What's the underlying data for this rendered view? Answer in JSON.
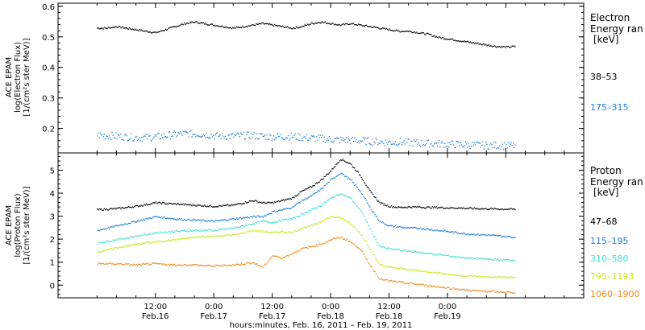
{
  "chart_data": [
    {
      "type": "scatter",
      "panel": "electron",
      "ylabel_lines": [
        "ACE EPAM",
        "log(Electron Flux)",
        "[1/(cm²s ster MeV)]"
      ],
      "ylim": [
        0.12,
        0.61
      ],
      "yticks": [
        0.2,
        0.3,
        0.4,
        0.5,
        0.6
      ],
      "ytick_labels": [
        "0.2",
        "0.3",
        "0.4",
        "0.5",
        "0.6"
      ],
      "legend_title_lines": [
        "Electron",
        "Energy ran",
        "[keV]"
      ],
      "series": [
        {
          "name": "38–53",
          "color": "#000000",
          "x": [
            0,
            2,
            4,
            6,
            8,
            10,
            12,
            14,
            16,
            18,
            20,
            22,
            24,
            26,
            28,
            30,
            32,
            34,
            36,
            38,
            40,
            42,
            44,
            46,
            48,
            50,
            52,
            54,
            56,
            58,
            60,
            62,
            64,
            66,
            68,
            70,
            72,
            74,
            76,
            78,
            80,
            82,
            84,
            86
          ],
          "y": [
            0.53,
            0.53,
            0.535,
            0.53,
            0.525,
            0.52,
            0.515,
            0.525,
            0.535,
            0.545,
            0.55,
            0.545,
            0.54,
            0.535,
            0.53,
            0.535,
            0.54,
            0.545,
            0.54,
            0.535,
            0.53,
            0.535,
            0.545,
            0.55,
            0.545,
            0.54,
            0.545,
            0.54,
            0.535,
            0.53,
            0.525,
            0.52,
            0.52,
            0.515,
            0.51,
            0.5,
            0.495,
            0.49,
            0.485,
            0.48,
            0.475,
            0.47,
            0.468,
            0.47
          ]
        },
        {
          "name": "175–315",
          "color": "#1e7fd6",
          "x": [
            0,
            2,
            4,
            6,
            8,
            10,
            12,
            14,
            16,
            18,
            20,
            22,
            24,
            26,
            28,
            30,
            32,
            34,
            36,
            38,
            40,
            42,
            44,
            46,
            48,
            50,
            52,
            54,
            56,
            58,
            60,
            62,
            64,
            66,
            68,
            70,
            72,
            74,
            76,
            78,
            80,
            82,
            84,
            86
          ],
          "y": [
            0.18,
            0.178,
            0.176,
            0.174,
            0.172,
            0.172,
            0.174,
            0.178,
            0.182,
            0.185,
            0.184,
            0.182,
            0.178,
            0.176,
            0.177,
            0.178,
            0.178,
            0.176,
            0.174,
            0.175,
            0.176,
            0.172,
            0.17,
            0.168,
            0.166,
            0.164,
            0.162,
            0.162,
            0.16,
            0.158,
            0.156,
            0.157,
            0.156,
            0.154,
            0.152,
            0.152,
            0.15,
            0.149,
            0.148,
            0.147,
            0.146,
            0.146,
            0.145,
            0.145
          ]
        }
      ]
    },
    {
      "type": "scatter",
      "panel": "proton",
      "ylabel_lines": [
        "ACE EPAM",
        "log(Proton Flux)",
        "[1/(cm²s ster MeV)]"
      ],
      "ylim": [
        -0.55,
        5.75
      ],
      "yticks": [
        0,
        1,
        2,
        3,
        4,
        5
      ],
      "ytick_labels": [
        "0",
        "1",
        "2",
        "3",
        "4",
        "5"
      ],
      "legend_title_lines": [
        "Proton",
        "Energy ran",
        "[keV]"
      ],
      "series": [
        {
          "name": "47–68",
          "color": "#000000",
          "x": [
            0,
            4,
            8,
            12,
            16,
            20,
            24,
            28,
            32,
            34,
            36,
            38,
            40,
            42,
            44,
            46,
            48,
            50,
            52,
            54,
            56,
            58,
            60,
            62,
            64,
            66,
            68,
            70,
            72,
            74,
            76,
            80,
            86
          ],
          "y": [
            3.3,
            3.35,
            3.45,
            3.6,
            3.55,
            3.5,
            3.45,
            3.5,
            3.7,
            3.6,
            3.6,
            3.7,
            3.8,
            4.1,
            4.3,
            4.6,
            5.0,
            5.5,
            5.3,
            4.8,
            4.1,
            3.6,
            3.45,
            3.4,
            3.42,
            3.42,
            3.4,
            3.4,
            3.38,
            3.38,
            3.36,
            3.34,
            3.32
          ]
        },
        {
          "name": "115–195",
          "color": "#1e7fd6",
          "x": [
            0,
            4,
            8,
            12,
            16,
            20,
            24,
            28,
            32,
            34,
            36,
            38,
            40,
            42,
            44,
            46,
            48,
            50,
            52,
            54,
            56,
            58,
            60,
            62,
            64,
            66,
            68,
            70,
            72,
            74,
            76,
            80,
            86
          ],
          "y": [
            2.4,
            2.6,
            2.8,
            3.0,
            2.9,
            2.85,
            2.8,
            2.9,
            3.0,
            3.0,
            3.2,
            3.3,
            3.4,
            3.7,
            3.9,
            4.2,
            4.6,
            4.9,
            4.6,
            4.1,
            3.4,
            2.8,
            2.6,
            2.55,
            2.5,
            2.5,
            2.45,
            2.4,
            2.35,
            2.3,
            2.25,
            2.2,
            2.1
          ]
        },
        {
          "name": "310–580",
          "color": "#3fe0d0",
          "x": [
            0,
            4,
            8,
            12,
            16,
            20,
            24,
            28,
            32,
            34,
            36,
            38,
            40,
            42,
            44,
            46,
            48,
            50,
            52,
            54,
            56,
            58,
            60,
            62,
            64,
            66,
            68,
            70,
            72,
            74,
            76,
            80,
            86
          ],
          "y": [
            1.85,
            2.0,
            2.15,
            2.3,
            2.35,
            2.4,
            2.4,
            2.5,
            2.7,
            2.8,
            2.75,
            2.85,
            2.9,
            3.1,
            3.3,
            3.5,
            3.8,
            4.0,
            3.8,
            3.3,
            2.5,
            1.7,
            1.6,
            1.55,
            1.5,
            1.45,
            1.4,
            1.35,
            1.3,
            1.25,
            1.2,
            1.15,
            1.1
          ]
        },
        {
          "name": "795–1193",
          "color": "#c8e817",
          "x": [
            0,
            4,
            8,
            12,
            16,
            20,
            24,
            28,
            32,
            34,
            36,
            38,
            40,
            42,
            44,
            46,
            48,
            50,
            52,
            54,
            56,
            58,
            60,
            62,
            64,
            66,
            68,
            70,
            72,
            74,
            76,
            80,
            86
          ],
          "y": [
            1.45,
            1.65,
            1.8,
            1.9,
            2.0,
            2.1,
            2.15,
            2.2,
            2.4,
            2.35,
            2.3,
            2.35,
            2.3,
            2.5,
            2.6,
            2.8,
            3.0,
            2.95,
            2.7,
            2.3,
            1.6,
            0.9,
            0.8,
            0.75,
            0.7,
            0.65,
            0.6,
            0.55,
            0.5,
            0.45,
            0.42,
            0.38,
            0.35
          ]
        },
        {
          "name": "1060–1900",
          "color": "#f08a1c",
          "x": [
            0,
            4,
            8,
            12,
            16,
            20,
            24,
            28,
            32,
            34,
            36,
            38,
            40,
            42,
            44,
            46,
            48,
            50,
            52,
            54,
            56,
            58,
            60,
            62,
            64,
            66,
            68,
            70,
            72,
            74,
            76,
            80,
            86
          ],
          "y": [
            0.95,
            0.95,
            0.9,
            0.95,
            0.9,
            0.9,
            0.85,
            0.9,
            1.0,
            0.8,
            1.3,
            1.2,
            1.4,
            1.6,
            1.7,
            1.8,
            2.0,
            2.1,
            1.9,
            1.6,
            0.9,
            0.3,
            0.2,
            0.15,
            0.1,
            0.05,
            0.0,
            -0.05,
            -0.1,
            -0.15,
            -0.2,
            -0.25,
            -0.3
          ]
        }
      ]
    }
  ],
  "x_axis": {
    "range": [
      -8,
      100
    ],
    "major_ticks": [
      12,
      24,
      36,
      48,
      60,
      72,
      84
    ],
    "minor_ticks": [
      0,
      4,
      8,
      16,
      20,
      28,
      32,
      40,
      44,
      52,
      56,
      64,
      68,
      76,
      80,
      88,
      92,
      96
    ],
    "time_labels": [
      "12:00",
      "0:00",
      "12:00",
      "0:00",
      "12:00",
      "0:00"
    ],
    "date_labels": [
      "Feb.16",
      "Feb.17",
      "Feb.17",
      "Feb.18",
      "Feb.18",
      "Feb.19"
    ],
    "title": "hours:minutes, Feb. 16, 2011 – Feb. 19, 2011"
  }
}
